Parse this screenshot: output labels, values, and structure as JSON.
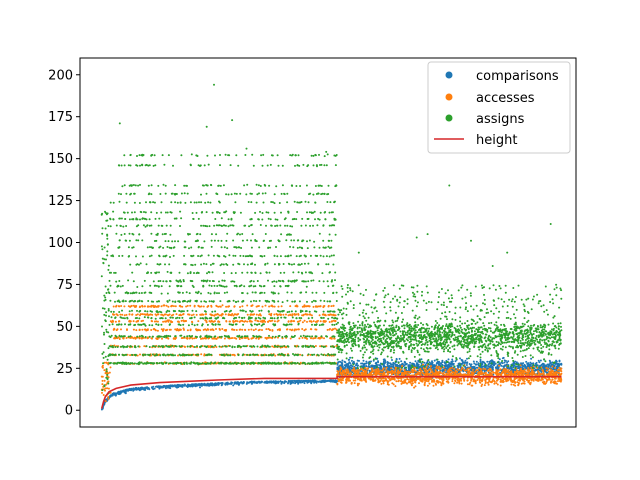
{
  "chart_data": {
    "type": "scatter",
    "title": "",
    "xlabel": "",
    "ylabel": "",
    "ylim": [
      -10,
      210
    ],
    "xlim": [
      -6000,
      131000
    ],
    "yticks": [
      0,
      25,
      50,
      75,
      100,
      125,
      150,
      175,
      200
    ],
    "ytick_labels": [
      "0",
      "25",
      "50",
      "75",
      "100",
      "125",
      "150",
      "175",
      "200"
    ],
    "x_tick_labels_shown": false,
    "grid": false,
    "legend_position": "upper right",
    "phase_boundary_x": 65000,
    "x_max": 127000,
    "series": [
      {
        "name": "comparisons",
        "kind": "scatter",
        "color": "#1f77b4",
        "phase1_level": [
          {
            "x": 0,
            "y": 1
          },
          {
            "x": 1000,
            "y": 6
          },
          {
            "x": 3000,
            "y": 10
          },
          {
            "x": 8000,
            "y": 13
          },
          {
            "x": 20000,
            "y": 15
          },
          {
            "x": 40000,
            "y": 17
          },
          {
            "x": 65000,
            "y": 18
          }
        ],
        "phase2_range": [
          18,
          32
        ]
      },
      {
        "name": "accesses",
        "kind": "scatter",
        "color": "#ff7f0e",
        "phase1_bands": [
          28,
          33,
          38,
          43,
          48,
          53,
          57,
          62
        ],
        "phase1_range_at_start": [
          5,
          30
        ],
        "phase2_range": [
          13,
          28
        ]
      },
      {
        "name": "assigns",
        "kind": "scatter",
        "color": "#2ca02c",
        "phase1_bands": [
          28,
          33,
          38,
          44,
          51,
          55,
          59,
          65,
          70,
          74,
          77,
          82,
          87,
          92,
          97,
          101,
          105,
          110,
          114,
          118,
          124,
          129,
          134,
          146,
          152
        ],
        "phase1_outliers": [
          {
            "x": 5000,
            "y": 171
          },
          {
            "x": 11000,
            "y": 152
          },
          {
            "x": 29000,
            "y": 169
          },
          {
            "x": 31000,
            "y": 194
          },
          {
            "x": 36000,
            "y": 173
          },
          {
            "x": 40000,
            "y": 156
          },
          {
            "x": 62000,
            "y": 154
          }
        ],
        "phase2_range": [
          25,
          75
        ],
        "phase2_outliers": [
          {
            "x": 96000,
            "y": 134
          },
          {
            "x": 87000,
            "y": 103
          },
          {
            "x": 102000,
            "y": 101
          },
          {
            "x": 90000,
            "y": 105
          },
          {
            "x": 124000,
            "y": 111
          },
          {
            "x": 71000,
            "y": 94
          },
          {
            "x": 112000,
            "y": 94
          },
          {
            "x": 108000,
            "y": 86
          }
        ]
      },
      {
        "name": "height",
        "kind": "line",
        "color": "#d62728",
        "points": [
          {
            "x": 0,
            "y": 1
          },
          {
            "x": 500,
            "y": 5
          },
          {
            "x": 1000,
            "y": 8
          },
          {
            "x": 2000,
            "y": 11
          },
          {
            "x": 4000,
            "y": 13
          },
          {
            "x": 8000,
            "y": 15
          },
          {
            "x": 16000,
            "y": 16.5
          },
          {
            "x": 32000,
            "y": 18
          },
          {
            "x": 45000,
            "y": 19
          },
          {
            "x": 65000,
            "y": 19
          },
          {
            "x": 65000,
            "y": 20
          },
          {
            "x": 127000,
            "y": 20
          }
        ]
      }
    ]
  }
}
